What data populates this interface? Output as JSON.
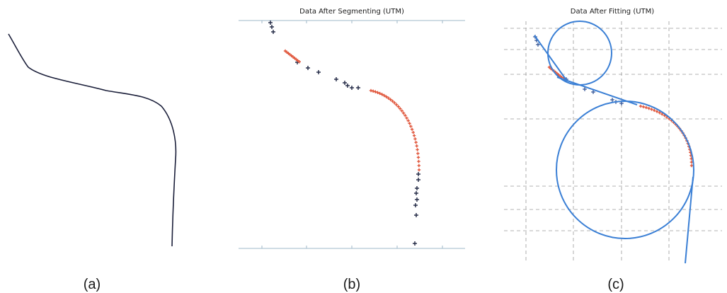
{
  "panels": [
    {
      "caption": "(a)",
      "title": ""
    },
    {
      "caption": "(b)",
      "title": "Data After Segmenting (UTM)"
    },
    {
      "caption": "(c)",
      "title": "Data After Fitting (UTM)"
    }
  ],
  "colors": {
    "trajectory": "#1b1f3a",
    "straight_points": "#1c2340",
    "curve_points": "#e0553a",
    "fit_lines": "#3a7fd5",
    "grid": "#9a9a9a",
    "frame": "#9fb8c8"
  }
}
